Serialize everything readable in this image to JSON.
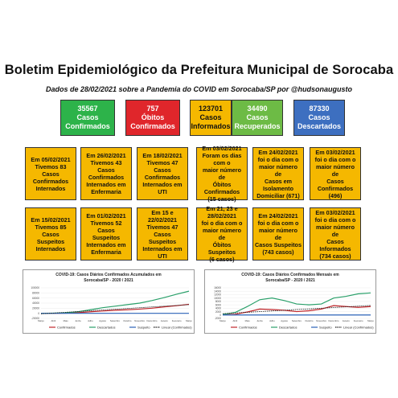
{
  "header": {
    "title": "Boletim Epidemiológico da Prefeitura Municipal de Sorocaba",
    "subtitle": "Dados de 28/02/2021 sobre a Pandemia do COVID em Sorocaba/SP por @hudsonaugusto"
  },
  "stats": [
    {
      "value": "35567",
      "label1": "Casos",
      "label2": "Confirmados",
      "color": "#2db34a"
    },
    {
      "value": "757",
      "label1": "Óbitos",
      "label2": "Confirmados",
      "color": "#e0262b"
    },
    {
      "value": "123701",
      "label1": "Casos",
      "label2": "Informados",
      "color": "#f5b800"
    },
    {
      "value": "34490",
      "label1": "Casos",
      "label2": "Recuperados",
      "color": "#6dbb45"
    },
    {
      "value": "87330",
      "label1": "Casos",
      "label2": "Descartados",
      "color": "#3d6fc0"
    }
  ],
  "cards_row1": [
    {
      "lines": [
        "Em 05/02/2021",
        "Tivemos 83 Casos",
        "Confirmados",
        "Internados"
      ]
    },
    {
      "lines": [
        "Em 26/02/2021",
        "Tivemos 43 Casos",
        "Confirmados",
        "Internados em",
        "Enfermaria"
      ]
    },
    {
      "lines": [
        "Em 18/02/2021",
        "Tivemos 47 Casos",
        "Confirmados",
        "Internados em UTI"
      ]
    },
    {
      "lines": [
        "Em 03/02/2021",
        "Foram os dias com o",
        "maior número de",
        "Óbitos Confirmados",
        "(15 casos)"
      ]
    },
    {
      "lines": [
        "Em 24/02/2021",
        "foi o dia com o",
        "maior número de",
        "Casos em",
        "Isolamento",
        "Domiciliar (671)"
      ]
    },
    {
      "lines": [
        "Em 03/02/2021",
        "foi o dia com o",
        "maior número de",
        "Casos Confirmados",
        "(496)"
      ]
    }
  ],
  "cards_row2": [
    {
      "lines": [
        "Em 15/02/2021",
        "Tivemos 85 Casos",
        "Suspeitos",
        "Internados"
      ]
    },
    {
      "lines": [
        "Em 01/02/2021",
        "Tivemos 52 Casos",
        "Suspeitos",
        "Internados em",
        "Enfermaria"
      ]
    },
    {
      "lines": [
        "Em 15 e",
        "22/02/2021",
        "Tivemos 47 Casos",
        "Suspeitos",
        "Internados em UTI"
      ]
    },
    {
      "lines": [
        "Em 21, 23 e",
        "28/02/2021",
        "foi o dia com o",
        "maior número de",
        "Óbitos Suspeitos",
        "(6 casos)"
      ]
    },
    {
      "lines": [
        "Em 24/02/2021",
        "foi o dia com o",
        "maior número de",
        "Casos Suspeitos",
        "(743 casos)"
      ]
    },
    {
      "lines": [
        "Em 03/02/2021",
        "foi o dia com o",
        "maior número de",
        "Casos Informados",
        "(734 casos)"
      ]
    }
  ],
  "colors": {
    "confirmados": "#c0262b",
    "descartados": "#2aa06a",
    "suspeito": "#2a62b8",
    "linear": "#1a1a1a"
  },
  "chart_data": [
    {
      "type": "line",
      "title": "COVID-19: Casos Diários Confirmados Acumulados em Sorocaba/SP - 2020 / 2021",
      "x": [
        "Março",
        "Abril",
        "Maio",
        "Junho",
        "Julho",
        "Agosto",
        "Setembro",
        "Outubro",
        "Novembro",
        "Dezembro",
        "Janeiro",
        "Fevereiro",
        "Março"
      ],
      "ylim": [
        -20000,
        100000
      ],
      "yticks": [
        "100000",
        "80000",
        "60000",
        "40000",
        "20000",
        "0",
        "-20000"
      ],
      "series": [
        {
          "name": "Confirmados",
          "values": [
            0,
            100,
            600,
            2500,
            6000,
            9000,
            12000,
            14000,
            16500,
            20000,
            25500,
            30000,
            35500
          ]
        },
        {
          "name": "Descartados",
          "values": [
            0,
            500,
            2000,
            6000,
            14000,
            22000,
            28000,
            34000,
            40000,
            50000,
            62000,
            75000,
            87000
          ]
        },
        {
          "name": "Suspeito",
          "values": [
            0,
            0,
            0,
            0,
            0,
            0,
            0,
            0,
            0,
            0,
            0,
            0,
            0
          ]
        },
        {
          "name": "Linear (Confirmados)",
          "values": [
            -2000,
            1000,
            4000,
            7000,
            10000,
            13000,
            16000,
            19000,
            22000,
            25000,
            28000,
            31000,
            34000
          ]
        }
      ]
    },
    {
      "type": "line",
      "title": "COVID-19: Casos Diários Confirmados Mensais em Sorocaba/SP - 2020 / 2021",
      "x": [
        "Março",
        "Abril",
        "Maio",
        "Junho",
        "Julho",
        "Agosto",
        "Setembro",
        "Outubro",
        "Novembro",
        "Dezembro",
        "Janeiro",
        "Fevereiro",
        "Março"
      ],
      "ylim": [
        -2000,
        16000
      ],
      "yticks": [
        "16000",
        "14000",
        "12000",
        "10000",
        "8000",
        "6000",
        "4000",
        "2000",
        "0",
        "-2000"
      ],
      "series": [
        {
          "name": "Confirmados",
          "values": [
            100,
            400,
            1800,
            3500,
            3200,
            2800,
            2000,
            2500,
            3500,
            5500,
            5000,
            4500,
            5000
          ]
        },
        {
          "name": "Descartados",
          "values": [
            300,
            1500,
            5000,
            9000,
            10000,
            8500,
            6500,
            6000,
            6500,
            10000,
            11000,
            12500,
            13000
          ]
        },
        {
          "name": "Suspeito",
          "values": [
            0,
            0,
            0,
            0,
            0,
            0,
            0,
            0,
            0,
            0,
            0,
            0,
            0
          ]
        },
        {
          "name": "Linear (Confirmados)",
          "values": [
            800,
            1200,
            1600,
            2000,
            2400,
            2800,
            3200,
            3600,
            4000,
            4400,
            4800,
            5200,
            5600
          ]
        }
      ]
    }
  ]
}
